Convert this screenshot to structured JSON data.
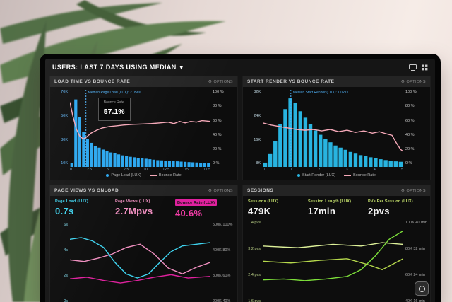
{
  "topbar": {
    "title_prefix": "USERS:",
    "title_rest": "LAST 7 DAYS USING MEDIAN",
    "caret": "▾"
  },
  "panels": [
    {
      "title": "LOAD TIME VS BOUNCE RATE",
      "options_label": "OPTIONS"
    },
    {
      "title": "START RENDER VS BOUNCE RATE",
      "options_label": "OPTIONS"
    },
    {
      "title": "PAGE VIEWS VS ONLOAD",
      "options_label": "OPTIONS",
      "metrics": [
        {
          "label": "Page Load (LUX)",
          "value": "0.7s",
          "label_color": "#3fd4f0",
          "value_color": "#3fd4f0"
        },
        {
          "label": "Page Views (LUX)",
          "value": "2.7Mpvs",
          "label_color": "#f08fc0",
          "value_color": "#f08fc0"
        },
        {
          "label": "Bounce Rate (LUX)",
          "value": "40.6%",
          "label_color": "#111111",
          "label_bg": "#e0219e",
          "value_color": "#f03ca5"
        }
      ]
    },
    {
      "title": "SESSIONS",
      "options_label": "OPTIONS",
      "metrics": [
        {
          "label": "Sessions (LUX)",
          "value": "479K",
          "label_color": "#c6e26d",
          "value_color": "#f2f2f2"
        },
        {
          "label": "Session Length (LUX)",
          "value": "17min",
          "label_color": "#c6e26d",
          "value_color": "#f2f2f2"
        },
        {
          "label": "PVs Per Session (LUX)",
          "value": "2pvs",
          "label_color": "#c6e26d",
          "value_color": "#f2f2f2"
        }
      ]
    }
  ],
  "chart_data": [
    {
      "type": "bar",
      "title": "LOAD TIME VS BOUNCE RATE",
      "x_ticks": [
        "0",
        "2.5",
        "5",
        "7.5",
        "10",
        "12.5",
        "15",
        "17.5"
      ],
      "x_tick_color": "#7fa9c9",
      "left_ticks": [
        "70K",
        "50K",
        "30K",
        "10K"
      ],
      "left_tick_color": "#5fb3f2",
      "right_ticks": [
        "100 %",
        "80 %",
        "60 %",
        "40 %",
        "20 %",
        "0 %"
      ],
      "right_tick_color": "#c9c9c9",
      "y_unit": "K",
      "bars": {
        "name": "Page Load (LUX)",
        "color": "#2ba7f0",
        "vmax": 80,
        "values": [
          4,
          70,
          52,
          36,
          29,
          25,
          22,
          20,
          18,
          16.5,
          15,
          14,
          13,
          12,
          11,
          10.5,
          10,
          9.5,
          9,
          8.5,
          8,
          7.5,
          7,
          6.8,
          6.5,
          6.2,
          6,
          5.8,
          5.5,
          5.3,
          5,
          4.8,
          4.6,
          4.4,
          4.2,
          4
        ]
      },
      "lines": [
        {
          "name": "Bounce Rate",
          "color": "#f5a8b8",
          "vmax": 105,
          "points": [
            [
              0,
              88
            ],
            [
              0.02,
              70
            ],
            [
              0.045,
              52
            ],
            [
              0.07,
              42
            ],
            [
              0.095,
              38
            ],
            [
              0.114,
              40
            ],
            [
              0.15,
              46
            ],
            [
              0.19,
              50
            ],
            [
              0.23,
              53
            ],
            [
              0.28,
              55
            ],
            [
              0.33,
              56
            ],
            [
              0.38,
              57
            ],
            [
              0.45,
              58
            ],
            [
              0.52,
              58.5
            ],
            [
              0.58,
              59
            ],
            [
              0.64,
              60
            ],
            [
              0.7,
              61
            ],
            [
              0.74,
              59
            ],
            [
              0.78,
              62
            ],
            [
              0.82,
              60
            ],
            [
              0.86,
              62
            ],
            [
              0.9,
              61
            ],
            [
              0.94,
              63
            ],
            [
              1,
              62
            ]
          ]
        }
      ],
      "median": {
        "x": 0.114,
        "label": "Median Page Load (LUX): 2.056s",
        "color": "#4fb0f5"
      },
      "tooltip": {
        "title": "Bounce Rate",
        "value": "57.1%",
        "x": 0.2,
        "y": 0.1
      },
      "legend": [
        {
          "label": "Page Load (LUX)",
          "color": "#2ba7f0",
          "type": "dot"
        },
        {
          "label": "Bounce Rate",
          "color": "#f5a8b8",
          "type": "line"
        }
      ]
    },
    {
      "type": "bar",
      "title": "START RENDER VS BOUNCE RATE",
      "x_ticks": [
        "0",
        "1",
        "2",
        "3",
        "4",
        "5"
      ],
      "x_tick_color": "#7fa9c9",
      "left_ticks": [
        "32K",
        "24K",
        "16K",
        "8K"
      ],
      "left_tick_color": "#bcd3de",
      "right_ticks": [
        "100 %",
        "80 %",
        "60 %",
        "40 %",
        "20 %",
        "0 %"
      ],
      "right_tick_color": "#c9c9c9",
      "y_unit": "K",
      "bars": {
        "name": "Start Render (LUX)",
        "color": "#28b4e0",
        "vmax": 36,
        "values": [
          2,
          6,
          12,
          20,
          27,
          32,
          30,
          26,
          23,
          20,
          17,
          15,
          13,
          11.5,
          10,
          9,
          8,
          7,
          6.2,
          5.5,
          5,
          4.5,
          4,
          3.6,
          3.2,
          2.9,
          2.6,
          2.4
        ]
      },
      "lines": [
        {
          "name": "Bounce Rate",
          "color": "#f5a8b8",
          "vmax": 105,
          "points": [
            [
              0,
              60
            ],
            [
              0.06,
              57
            ],
            [
              0.12,
              55
            ],
            [
              0.18,
              53
            ],
            [
              0.24,
              51
            ],
            [
              0.3,
              50
            ],
            [
              0.36,
              51
            ],
            [
              0.42,
              49
            ],
            [
              0.48,
              51
            ],
            [
              0.54,
              48
            ],
            [
              0.6,
              50
            ],
            [
              0.66,
              47
            ],
            [
              0.72,
              49
            ],
            [
              0.78,
              46
            ],
            [
              0.83,
              48
            ],
            [
              0.88,
              45
            ],
            [
              0.92,
              43
            ],
            [
              0.95,
              33
            ],
            [
              0.98,
              24
            ],
            [
              1,
              21
            ]
          ]
        }
      ],
      "median": {
        "x": 0.2,
        "label": "Median Start Render (LUX): 1.021s",
        "color": "#4fb0f5"
      },
      "legend": [
        {
          "label": "Start Render (LUX)",
          "color": "#28b4e0",
          "type": "dot"
        },
        {
          "label": "Bounce Rate",
          "color": "#f5a8b8",
          "type": "line"
        }
      ]
    },
    {
      "type": "line",
      "title": "PAGE VIEWS VS ONLOAD",
      "left_ticks": [
        "6s",
        "4s",
        "2s",
        "0s"
      ],
      "left_tick_color": "#7fd7e8",
      "right_ticks": [
        "500K 100%",
        "400K 80%",
        "300K 60%",
        "200K 40%"
      ],
      "right_tick_color": "#a9a9a9",
      "lines": [
        {
          "name": "Page Load (LUX)",
          "color": "#3fd4f0",
          "vmax": 1,
          "points": [
            [
              0,
              0.8
            ],
            [
              0.08,
              0.82
            ],
            [
              0.16,
              0.78
            ],
            [
              0.24,
              0.7
            ],
            [
              0.32,
              0.52
            ],
            [
              0.4,
              0.38
            ],
            [
              0.48,
              0.33
            ],
            [
              0.56,
              0.38
            ],
            [
              0.64,
              0.52
            ],
            [
              0.72,
              0.65
            ],
            [
              0.8,
              0.72
            ],
            [
              0.9,
              0.74
            ],
            [
              1,
              0.76
            ]
          ]
        },
        {
          "name": "Page Views (LUX)",
          "color": "#f08fc0",
          "vmax": 1,
          "points": [
            [
              0,
              0.55
            ],
            [
              0.1,
              0.53
            ],
            [
              0.2,
              0.57
            ],
            [
              0.3,
              0.62
            ],
            [
              0.4,
              0.7
            ],
            [
              0.5,
              0.74
            ],
            [
              0.6,
              0.62
            ],
            [
              0.7,
              0.45
            ],
            [
              0.8,
              0.38
            ],
            [
              0.9,
              0.46
            ],
            [
              1,
              0.52
            ]
          ]
        },
        {
          "name": "Bounce Rate (LUX)",
          "color": "#e0219e",
          "vmax": 1,
          "points": [
            [
              0,
              0.32
            ],
            [
              0.12,
              0.34
            ],
            [
              0.24,
              0.3
            ],
            [
              0.36,
              0.27
            ],
            [
              0.48,
              0.3
            ],
            [
              0.6,
              0.34
            ],
            [
              0.72,
              0.37
            ],
            [
              0.84,
              0.33
            ],
            [
              1,
              0.35
            ]
          ]
        }
      ]
    },
    {
      "type": "line",
      "title": "SESSIONS",
      "left_ticks": [
        "4 pvs",
        "3.2 pvs",
        "2.4 pvs",
        "1.6 pvs"
      ],
      "left_tick_color": "#b9cf86",
      "right_ticks": [
        "100K 40 min",
        "80K 32 min",
        "60K 24 min",
        "40K 16 min"
      ],
      "right_tick_color": "#a9a9a9",
      "lines": [
        {
          "name": "Sessions (LUX)",
          "color": "#7ddf3a",
          "vmax": 1,
          "points": [
            [
              0,
              0.3
            ],
            [
              0.15,
              0.31
            ],
            [
              0.3,
              0.29
            ],
            [
              0.45,
              0.31
            ],
            [
              0.6,
              0.34
            ],
            [
              0.7,
              0.42
            ],
            [
              0.8,
              0.58
            ],
            [
              0.9,
              0.78
            ],
            [
              1,
              0.88
            ]
          ]
        },
        {
          "name": "Session Length (LUX)",
          "color": "#b6d94c",
          "vmax": 1,
          "points": [
            [
              0,
              0.52
            ],
            [
              0.2,
              0.5
            ],
            [
              0.4,
              0.53
            ],
            [
              0.6,
              0.55
            ],
            [
              0.75,
              0.48
            ],
            [
              0.85,
              0.42
            ],
            [
              1,
              0.55
            ]
          ]
        },
        {
          "name": "PVs Per Session (LUX)",
          "color": "#dff29a",
          "vmax": 1,
          "points": [
            [
              0,
              0.7
            ],
            [
              0.25,
              0.68
            ],
            [
              0.5,
              0.72
            ],
            [
              0.7,
              0.7
            ],
            [
              0.85,
              0.74
            ],
            [
              1,
              0.72
            ]
          ]
        }
      ]
    }
  ]
}
